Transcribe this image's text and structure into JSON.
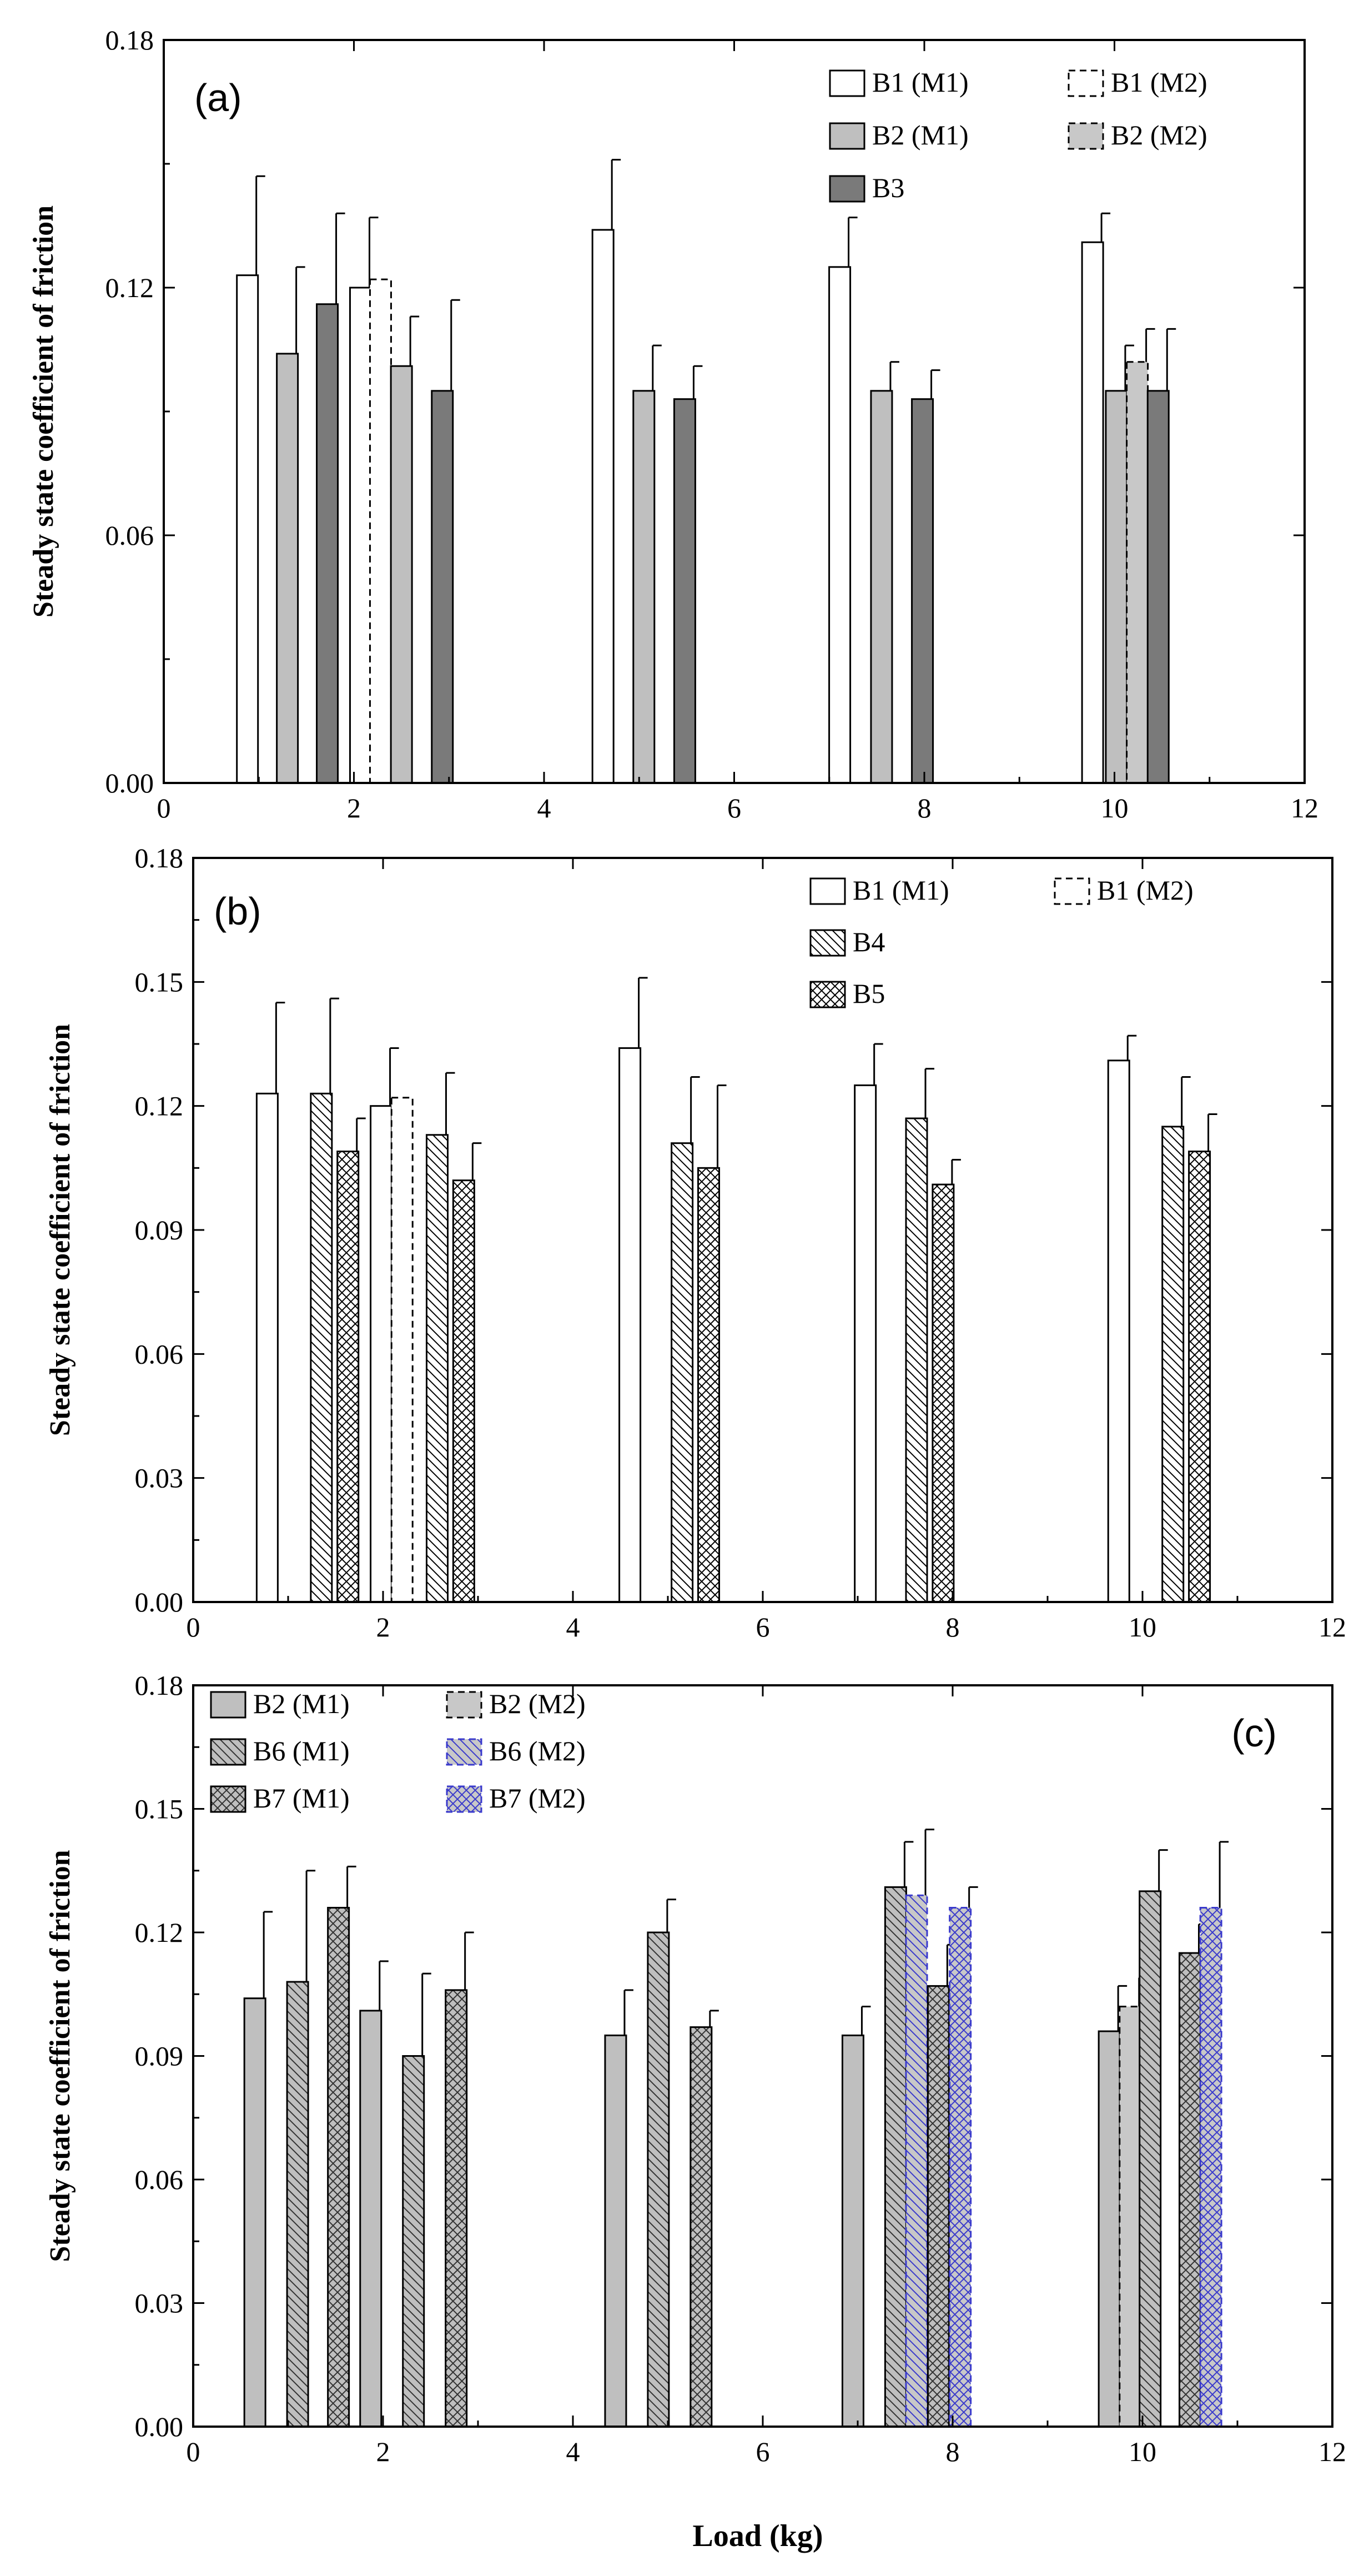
{
  "figure": {
    "xlabel": "Load (kg)"
  },
  "chart_data": [
    {
      "type": "bar",
      "panel": "(a)",
      "xlabel": "",
      "ylabel": "Steady state coefficient of friction",
      "xlim": [
        0,
        12
      ],
      "ylim": [
        0,
        0.18
      ],
      "xticks": [
        "0",
        "2",
        "4",
        "6",
        "8",
        "10",
        "12"
      ],
      "yticks": [
        "0.00",
        "0.06",
        "0.12",
        "0.18"
      ],
      "legend_placement": "top-right",
      "series": [
        {
          "name": "B1 (M1)",
          "style": "white",
          "points": [
            {
              "x": 0.88,
              "y": 0.123,
              "err": 0.024
            },
            {
              "x": 2.07,
              "y": 0.12,
              "err": 0.017
            },
            {
              "x": 4.62,
              "y": 0.134,
              "err": 0.017
            },
            {
              "x": 7.11,
              "y": 0.125,
              "err": 0.012
            },
            {
              "x": 9.77,
              "y": 0.131,
              "err": 0.007
            }
          ]
        },
        {
          "name": "B1 (M2)",
          "style": "white-dashed",
          "points": [
            {
              "x": 2.28,
              "y": 0.122,
              "err": 0.0
            }
          ]
        },
        {
          "name": "B2 (M1)",
          "style": "light",
          "points": [
            {
              "x": 1.3,
              "y": 0.104,
              "err": 0.021
            },
            {
              "x": 2.5,
              "y": 0.101,
              "err": 0.012
            },
            {
              "x": 5.05,
              "y": 0.095,
              "err": 0.011
            },
            {
              "x": 7.55,
              "y": 0.095,
              "err": 0.007
            },
            {
              "x": 10.02,
              "y": 0.095,
              "err": 0.011
            }
          ]
        },
        {
          "name": "B2 (M2)",
          "style": "light-dashed",
          "points": [
            {
              "x": 10.24,
              "y": 0.102,
              "err": 0.008
            }
          ]
        },
        {
          "name": "B3",
          "style": "dark",
          "points": [
            {
              "x": 1.72,
              "y": 0.116,
              "err": 0.022
            },
            {
              "x": 2.93,
              "y": 0.095,
              "err": 0.022
            },
            {
              "x": 5.48,
              "y": 0.093,
              "err": 0.008
            },
            {
              "x": 7.98,
              "y": 0.093,
              "err": 0.007
            },
            {
              "x": 10.46,
              "y": 0.095,
              "err": 0.015
            }
          ]
        }
      ]
    },
    {
      "type": "bar",
      "panel": "(b)",
      "xlabel": "",
      "ylabel": "Steady state coefficient of friction",
      "xlim": [
        0,
        12
      ],
      "ylim": [
        0,
        0.18
      ],
      "xticks": [
        "0",
        "2",
        "4",
        "6",
        "8",
        "10",
        "12"
      ],
      "yticks": [
        "0.00",
        "0.03",
        "0.06",
        "0.09",
        "0.12",
        "0.15",
        "0.18"
      ],
      "legend_placement": "top-right",
      "series": [
        {
          "name": "B1 (M1)",
          "style": "white",
          "points": [
            {
              "x": 0.78,
              "y": 0.123,
              "err": 0.022
            },
            {
              "x": 1.98,
              "y": 0.12,
              "err": 0.014
            },
            {
              "x": 4.6,
              "y": 0.134,
              "err": 0.017
            },
            {
              "x": 7.08,
              "y": 0.125,
              "err": 0.01
            },
            {
              "x": 9.75,
              "y": 0.131,
              "err": 0.006
            }
          ]
        },
        {
          "name": "B1 (M2)",
          "style": "white-dashed",
          "points": [
            {
              "x": 2.2,
              "y": 0.122,
              "err": 0.0
            }
          ]
        },
        {
          "name": "B4",
          "style": "hatch",
          "points": [
            {
              "x": 1.35,
              "y": 0.123,
              "err": 0.023
            },
            {
              "x": 2.57,
              "y": 0.113,
              "err": 0.015
            },
            {
              "x": 5.15,
              "y": 0.111,
              "err": 0.016
            },
            {
              "x": 7.62,
              "y": 0.117,
              "err": 0.012
            },
            {
              "x": 10.32,
              "y": 0.115,
              "err": 0.012
            }
          ]
        },
        {
          "name": "B5",
          "style": "crosshatch",
          "points": [
            {
              "x": 1.63,
              "y": 0.109,
              "err": 0.008
            },
            {
              "x": 2.85,
              "y": 0.102,
              "err": 0.009
            },
            {
              "x": 5.43,
              "y": 0.105,
              "err": 0.02
            },
            {
              "x": 7.9,
              "y": 0.101,
              "err": 0.006
            },
            {
              "x": 10.6,
              "y": 0.109,
              "err": 0.009
            }
          ]
        }
      ]
    },
    {
      "type": "bar",
      "panel": "(c)",
      "xlabel": "Load (kg)",
      "ylabel": "Steady state coefficient of friction",
      "xlim": [
        0,
        12
      ],
      "ylim": [
        0,
        0.18
      ],
      "xticks": [
        "0",
        "2",
        "4",
        "6",
        "8",
        "10",
        "12"
      ],
      "yticks": [
        "0.00",
        "0.03",
        "0.06",
        "0.09",
        "0.12",
        "0.15",
        "0.18"
      ],
      "legend_placement": "top-left",
      "series": [
        {
          "name": "B2 (M1)",
          "style": "light",
          "points": [
            {
              "x": 0.65,
              "y": 0.104,
              "err": 0.021
            },
            {
              "x": 1.87,
              "y": 0.101,
              "err": 0.012
            },
            {
              "x": 4.45,
              "y": 0.095,
              "err": 0.011
            },
            {
              "x": 6.95,
              "y": 0.095,
              "err": 0.007
            },
            {
              "x": 9.65,
              "y": 0.096,
              "err": 0.011
            }
          ]
        },
        {
          "name": "B2 (M2)",
          "style": "light-dashed",
          "points": [
            {
              "x": 9.87,
              "y": 0.102,
              "err": 0.007
            }
          ]
        },
        {
          "name": "B6 (M1)",
          "style": "hatch-gray",
          "points": [
            {
              "x": 1.1,
              "y": 0.108,
              "err": 0.027
            },
            {
              "x": 2.32,
              "y": 0.09,
              "err": 0.02
            },
            {
              "x": 4.9,
              "y": 0.12,
              "err": 0.008
            },
            {
              "x": 7.4,
              "y": 0.131,
              "err": 0.011
            },
            {
              "x": 10.08,
              "y": 0.13,
              "err": 0.01
            }
          ]
        },
        {
          "name": "B6 (M2)",
          "style": "hatch-blue",
          "points": [
            {
              "x": 7.62,
              "y": 0.129,
              "err": 0.016
            }
          ]
        },
        {
          "name": "B7 (M1)",
          "style": "crosshatch-gray",
          "points": [
            {
              "x": 1.53,
              "y": 0.126,
              "err": 0.01
            },
            {
              "x": 2.77,
              "y": 0.106,
              "err": 0.014
            },
            {
              "x": 5.35,
              "y": 0.097,
              "err": 0.004
            },
            {
              "x": 7.85,
              "y": 0.107,
              "err": 0.01
            },
            {
              "x": 10.5,
              "y": 0.115,
              "err": 0.007
            }
          ]
        },
        {
          "name": "B7 (M2)",
          "style": "crosshatch-blue",
          "points": [
            {
              "x": 8.08,
              "y": 0.126,
              "err": 0.005
            },
            {
              "x": 10.72,
              "y": 0.126,
              "err": 0.016
            }
          ]
        }
      ]
    }
  ]
}
